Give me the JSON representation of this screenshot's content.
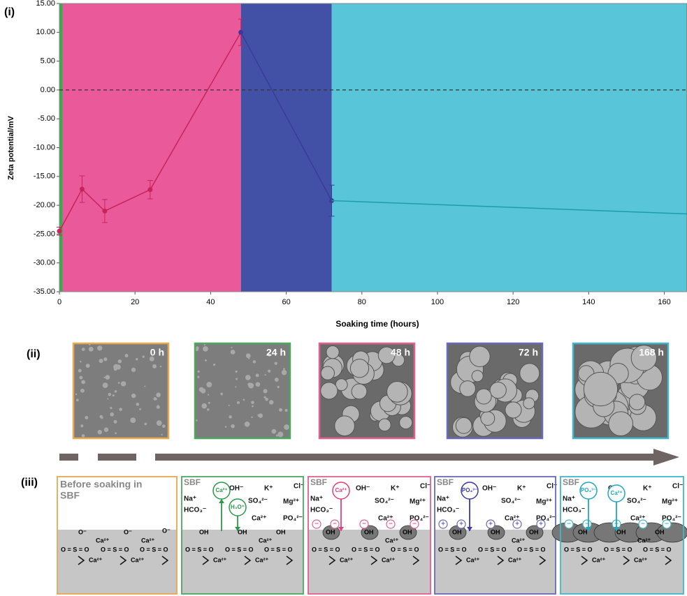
{
  "chart_data": {
    "type": "line",
    "panel_label": "(i)",
    "y_label": "Zeta potential/mV",
    "x_label": "Soaking time (hours)",
    "xlim": [
      0,
      166
    ],
    "ylim": [
      -35,
      15
    ],
    "xticks": [
      0,
      20,
      40,
      60,
      80,
      100,
      120,
      140,
      160
    ],
    "yticks": [
      {
        "value": 15,
        "label": "15.00"
      },
      {
        "value": 10,
        "label": "10.00"
      },
      {
        "value": 5,
        "label": "5.00"
      },
      {
        "value": 0,
        "label": "0.00"
      },
      {
        "value": -5,
        "label": "-5.00"
      },
      {
        "value": -10,
        "label": "-10.00"
      },
      {
        "value": -15,
        "label": "-15.00"
      },
      {
        "value": -20,
        "label": "-20.00"
      },
      {
        "value": -25,
        "label": "-25.00"
      },
      {
        "value": -30,
        "label": "-30.00"
      },
      {
        "value": -35,
        "label": "-35.00"
      }
    ],
    "reference_line": 0,
    "regions": [
      {
        "from": 0,
        "to": 48,
        "color": "#ea5a9b"
      },
      {
        "from": 48,
        "to": 72,
        "color": "#4251a6"
      },
      {
        "from": 72,
        "to": 166,
        "color": "#58c5d8"
      },
      {
        "from": 0,
        "to": 0.8,
        "color": "#2fb04a"
      }
    ],
    "series": [
      {
        "color": "#c8245a",
        "markers": true,
        "x": [
          0,
          6,
          12,
          24,
          48
        ],
        "values": [
          -24.5,
          -17.2,
          -21,
          -17.3,
          10
        ],
        "errors": [
          0.7,
          2.3,
          2,
          1.6,
          2.3
        ]
      },
      {
        "color": "#3a3a9a",
        "markers": true,
        "x": [
          48,
          72
        ],
        "values": [
          10,
          -19.2
        ],
        "errors": [
          null,
          2.7
        ]
      },
      {
        "color": "#1a9faa",
        "markers": false,
        "x": [
          72,
          166
        ],
        "values": [
          -19.2,
          -21.5
        ],
        "errors": [
          null,
          null
        ]
      }
    ]
  },
  "panel_ii": {
    "label": "(ii)",
    "images": [
      {
        "time": "0 h",
        "border": "#e8a850"
      },
      {
        "time": "24 h",
        "border": "#4aa860"
      },
      {
        "time": "48 h",
        "border": "#e06090"
      },
      {
        "time": "72 h",
        "border": "#6a6ab8"
      },
      {
        "time": "168 h",
        "border": "#40b8c8"
      }
    ]
  },
  "panel_iii": {
    "label": "(iii)",
    "substrate": [
      "OH",
      "OH",
      "OH",
      "Ca²⁺",
      "O = S = O",
      "O = S = O",
      "O = S = O",
      "Ca²⁺",
      "Ca²⁺"
    ],
    "boxes": [
      {
        "border": "#e8a850",
        "title": [
          "Before soaking in",
          "SBF"
        ],
        "substrate": [
          "O⁻",
          "O⁻",
          "O⁻",
          "Ca²⁺",
          "Ca²⁺",
          "O = S = O",
          "O = S = O",
          "O = S = O",
          "Ca²⁺",
          "Ca²⁺"
        ]
      },
      {
        "border": "#4aa860",
        "ions": [
          "SBF",
          "OH⁻",
          "K⁺",
          "Cl⁻",
          "Na⁺",
          "SO₄²⁻",
          "Mg²⁺",
          "HCO₃⁻",
          "Ca²⁺",
          "PO₄²⁻"
        ],
        "circled": [
          {
            "text": "Ca²⁺",
            "color": "#2a9a4a"
          },
          {
            "text": "H₃O⁺",
            "color": "#2a9a4a"
          }
        ]
      },
      {
        "border": "#e06090",
        "ions": [
          "SBF",
          "OH⁻",
          "K⁺",
          "Cl⁻",
          "Na⁺",
          "SO₄²⁻",
          "Mg²⁺",
          "HCO₃⁻",
          "Ca²⁺",
          "PO₄²⁻"
        ],
        "circled": [
          {
            "text": "Ca²⁺",
            "color": "#e0407a"
          }
        ],
        "charge": "−"
      },
      {
        "border": "#6a6ab8",
        "ions": [
          "SBF",
          "OH⁻",
          "K⁺",
          "Cl⁻",
          "Na⁺",
          "SO₄²⁻",
          "Mg²⁺",
          "HCO₃⁻",
          "Ca²⁺",
          "PO₄²⁻"
        ],
        "circled": [
          {
            "text": "PO₄³⁻",
            "color": "#3a3aa8"
          }
        ],
        "charge": "+"
      },
      {
        "border": "#40b8c8",
        "ions": [
          "SBF",
          "OH⁻",
          "K⁺",
          "Cl⁻",
          "Na⁺",
          "SO₄²⁻",
          "Mg²⁺",
          "HCO₃⁻",
          "Ca²⁺",
          "PO₄²⁻"
        ],
        "circled": [
          {
            "text": "PO₄³⁻",
            "color": "#20a8c0"
          },
          {
            "text": "Ca²⁺",
            "color": "#20a8c0"
          }
        ],
        "charge": "−"
      }
    ]
  }
}
